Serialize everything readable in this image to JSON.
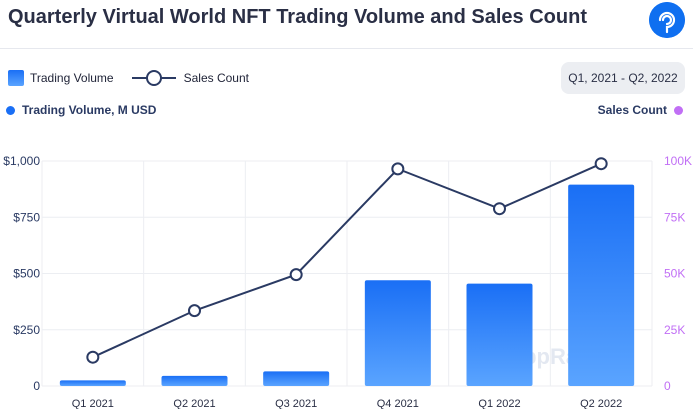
{
  "header": {
    "title": "Quarterly Virtual World NFT Trading Volume and Sales Count",
    "logo_icon": "dappradar-logo-icon"
  },
  "legend": {
    "bar_label": "Trading Volume",
    "line_label": "Sales Count"
  },
  "date_range": "Q1, 2021 - Q2, 2022",
  "axes_labels": {
    "left": "Trading Volume, M USD",
    "right": "Sales Count"
  },
  "watermark": "DappRadar",
  "colors": {
    "bar_top": "#1a6ff5",
    "bar_bottom": "#5aa4ff",
    "line": "#2a3a63",
    "left_tick": "#2a3a63",
    "right_tick": "#c16ff5",
    "grid": "#eceef2"
  },
  "chart_data": {
    "type": "bar",
    "title": "Quarterly Virtual World NFT Trading Volume and Sales Count",
    "categories": [
      "Q1 2021",
      "Q2 2021",
      "Q3 2021",
      "Q4 2021",
      "Q1 2022",
      "Q2 2022"
    ],
    "series": [
      {
        "name": "Trading Volume",
        "type": "bar",
        "axis": "left",
        "values": [
          25,
          45,
          65,
          470,
          455,
          895
        ]
      },
      {
        "name": "Sales Count",
        "type": "line",
        "axis": "right",
        "values": [
          12800,
          33500,
          49500,
          96500,
          78800,
          98800
        ]
      }
    ],
    "ylabel": "Trading Volume, M USD",
    "y2label": "Sales Count",
    "ylim": [
      0,
      1000
    ],
    "y2lim": [
      0,
      100000
    ],
    "yticks": [
      0,
      250,
      500,
      750,
      1000
    ],
    "yticklabels": [
      "0",
      "$250",
      "$500",
      "$750",
      "$1,000"
    ],
    "y2ticks": [
      0,
      25000,
      50000,
      75000,
      100000
    ],
    "y2ticklabels": [
      "0",
      "25K",
      "50K",
      "75K",
      "100K"
    ],
    "grid": true,
    "legend": "top-left"
  }
}
